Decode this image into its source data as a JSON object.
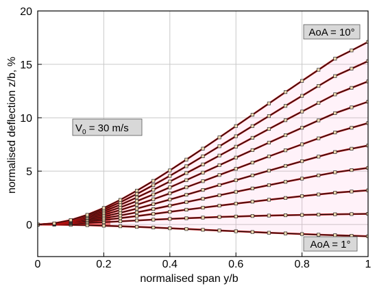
{
  "chart_data": {
    "type": "line",
    "xlabel": "normalised span y/b",
    "ylabel": "normalised deflection z/b, %",
    "xlim": [
      0,
      1
    ],
    "ylim": [
      -3,
      20
    ],
    "x_ticks": [
      "0",
      "0.2",
      "0.4",
      "0.6",
      "0.8",
      "1"
    ],
    "x_tick_values": [
      0,
      0.2,
      0.4,
      0.6,
      0.8,
      1
    ],
    "y_ticks": [
      "0",
      "5",
      "10",
      "15",
      "20"
    ],
    "y_tick_values": [
      0,
      5,
      10,
      15,
      20
    ],
    "grid": true,
    "annotations": {
      "velocity_main": "V",
      "velocity_sub": "0",
      "velocity_rest": " = 30 m/s",
      "aoa_top": "AoA = 10°",
      "aoa_bottom": "AoA = 1°"
    },
    "x": [
      0,
      0.05,
      0.1,
      0.15,
      0.2,
      0.25,
      0.3,
      0.35,
      0.4,
      0.45,
      0.5,
      0.55,
      0.6,
      0.65,
      0.7,
      0.75,
      0.8,
      0.85,
      0.9,
      0.95,
      1.0
    ],
    "tip_values": [
      -1.1,
      1.0,
      3.2,
      5.3,
      7.4,
      9.5,
      11.5,
      13.4,
      15.3,
      17.1
    ],
    "series": [
      {
        "values": [
          0,
          -0.01,
          -0.03,
          -0.06,
          -0.11,
          -0.16,
          -0.22,
          -0.28,
          -0.35,
          -0.42,
          -0.49,
          -0.56,
          -0.63,
          -0.7,
          -0.77,
          -0.83,
          -0.89,
          -0.95,
          -1.0,
          -1.05,
          -1.1
        ]
      },
      {
        "values": [
          0,
          0.02,
          0.07,
          0.14,
          0.22,
          0.3,
          0.38,
          0.46,
          0.53,
          0.59,
          0.65,
          0.71,
          0.75,
          0.8,
          0.84,
          0.87,
          0.9,
          0.93,
          0.96,
          0.98,
          1.0
        ]
      },
      {
        "values": [
          0,
          0.04,
          0.13,
          0.26,
          0.42,
          0.6,
          0.79,
          0.99,
          1.19,
          1.39,
          1.58,
          1.77,
          1.96,
          2.14,
          2.32,
          2.49,
          2.66,
          2.82,
          2.98,
          3.09,
          3.2
        ]
      },
      {
        "values": [
          0,
          0.05,
          0.17,
          0.35,
          0.58,
          0.85,
          1.14,
          1.45,
          1.77,
          2.1,
          2.42,
          2.74,
          3.06,
          3.38,
          3.69,
          4.0,
          4.3,
          4.6,
          4.89,
          5.1,
          5.3
        ]
      },
      {
        "values": [
          0,
          0.06,
          0.21,
          0.45,
          0.75,
          1.1,
          1.49,
          1.91,
          2.34,
          2.79,
          3.24,
          3.7,
          4.15,
          4.6,
          5.05,
          5.49,
          5.93,
          6.36,
          6.79,
          7.1,
          7.4
        ]
      },
      {
        "values": [
          0,
          0.07,
          0.26,
          0.55,
          0.92,
          1.36,
          1.85,
          2.37,
          2.92,
          3.49,
          4.06,
          4.64,
          5.22,
          5.8,
          6.38,
          6.95,
          7.51,
          8.07,
          8.62,
          9.06,
          9.5
        ]
      },
      {
        "values": [
          0,
          0.08,
          0.3,
          0.64,
          1.08,
          1.61,
          2.19,
          2.82,
          3.48,
          4.16,
          4.86,
          5.56,
          6.27,
          6.97,
          7.67,
          8.37,
          9.06,
          9.75,
          10.43,
          10.97,
          11.5
        ]
      },
      {
        "values": [
          0,
          0.09,
          0.34,
          0.73,
          1.24,
          1.85,
          2.53,
          3.26,
          4.03,
          4.82,
          5.63,
          6.46,
          7.29,
          8.12,
          8.95,
          9.77,
          10.58,
          11.39,
          12.19,
          12.8,
          13.4
        ]
      },
      {
        "values": [
          0,
          0.1,
          0.38,
          0.82,
          1.4,
          2.09,
          2.86,
          3.69,
          4.56,
          5.46,
          6.39,
          7.33,
          8.27,
          9.22,
          10.16,
          11.11,
          12.05,
          12.98,
          13.9,
          14.6,
          15.3
        ]
      },
      {
        "values": [
          0,
          0.11,
          0.42,
          0.91,
          1.55,
          2.31,
          3.17,
          4.09,
          5.07,
          6.08,
          7.11,
          8.16,
          9.22,
          10.28,
          11.34,
          12.4,
          13.45,
          14.49,
          15.53,
          16.3,
          17.1
        ]
      }
    ]
  }
}
